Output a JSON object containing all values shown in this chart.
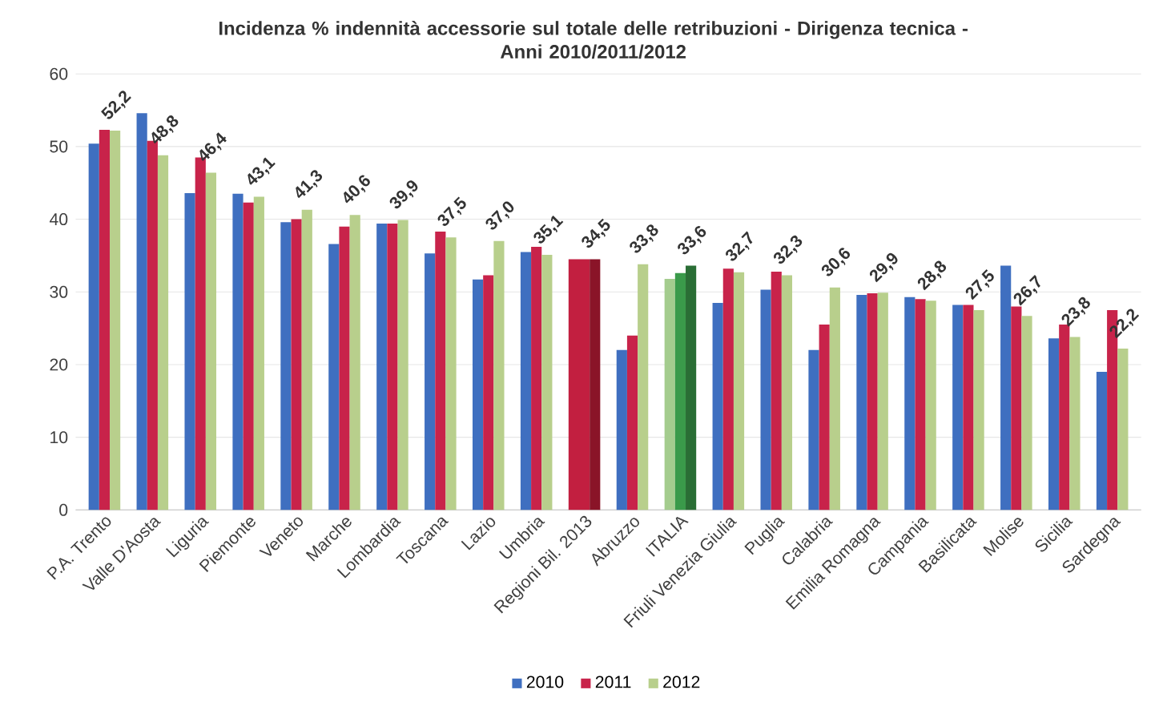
{
  "chart_data": {
    "type": "bar",
    "title": "Incidenza % indennità accessorie sul totale delle retribuzioni - Dirigenza tecnica -\nAnni 2010/2011/2012",
    "categories": [
      "P.A. Trento",
      "Valle D'Aosta",
      "Liguria",
      "Piemonte",
      "Veneto",
      "Marche",
      "Lombardia",
      "Toscana",
      "Lazio",
      "Umbria",
      "Regioni Bil. 2013",
      "Abruzzo",
      "ITALIA",
      "Friuli Venezia Giulia",
      "Puglia",
      "Calabria",
      "Emilia Romagna",
      "Campania",
      "Basilicata",
      "Molise",
      "Sicilia",
      "Sardegna"
    ],
    "series": [
      {
        "name": "2010",
        "color": "#3f6fc0",
        "colors": [
          "#3f6fc0",
          "#3f6fc0",
          "#3f6fc0",
          "#3f6fc0",
          "#3f6fc0",
          "#3f6fc0",
          "#3f6fc0",
          "#3f6fc0",
          "#3f6fc0",
          "#3f6fc0",
          "#c21f40",
          "#3f6fc0",
          "#a4cc8e",
          "#3f6fc0",
          "#3f6fc0",
          "#3f6fc0",
          "#3f6fc0",
          "#3f6fc0",
          "#3f6fc0",
          "#3f6fc0",
          "#3f6fc0",
          "#3f6fc0"
        ],
        "values": [
          50.4,
          54.6,
          43.6,
          43.5,
          39.6,
          36.6,
          39.4,
          35.3,
          31.7,
          35.5,
          34.5,
          22.0,
          31.8,
          28.5,
          30.3,
          22.0,
          29.6,
          29.3,
          28.2,
          33.6,
          23.6,
          19.0
        ]
      },
      {
        "name": "2011",
        "color": "#c8234a",
        "colors": [
          "#c8234a",
          "#c8234a",
          "#c8234a",
          "#c8234a",
          "#c8234a",
          "#c8234a",
          "#c8234a",
          "#c8234a",
          "#c8234a",
          "#c8234a",
          "#c21f40",
          "#c8234a",
          "#3a9a4a",
          "#c8234a",
          "#c8234a",
          "#c8234a",
          "#c8234a",
          "#c8234a",
          "#c8234a",
          "#c8234a",
          "#c8234a",
          "#c8234a"
        ],
        "values": [
          52.3,
          50.8,
          48.5,
          42.3,
          40.0,
          39.0,
          39.4,
          38.3,
          32.3,
          36.2,
          34.5,
          24.0,
          32.6,
          33.2,
          32.8,
          25.5,
          29.8,
          29.0,
          28.2,
          28.0,
          25.5,
          27.5
        ]
      },
      {
        "name": "2012",
        "color": "#b8cf8c",
        "colors": [
          "#b8cf8c",
          "#b8cf8c",
          "#b8cf8c",
          "#b8cf8c",
          "#b8cf8c",
          "#b8cf8c",
          "#b8cf8c",
          "#b8cf8c",
          "#b8cf8c",
          "#b8cf8c",
          "#8a1428",
          "#b8cf8c",
          "#2a6e35",
          "#b8cf8c",
          "#b8cf8c",
          "#b8cf8c",
          "#b8cf8c",
          "#b8cf8c",
          "#b8cf8c",
          "#b8cf8c",
          "#b8cf8c",
          "#b8cf8c"
        ],
        "values": [
          52.2,
          48.8,
          46.4,
          43.1,
          41.3,
          40.6,
          39.9,
          37.5,
          37.0,
          35.1,
          34.5,
          33.8,
          33.6,
          32.7,
          32.3,
          30.6,
          29.9,
          28.8,
          27.5,
          26.7,
          23.8,
          22.2
        ],
        "value_labels": [
          "52,2",
          "48,8",
          "46,4",
          "43,1",
          "41,3",
          "40,6",
          "39,9",
          "37,5",
          "37,0",
          "35,1",
          "34,5",
          "33,8",
          "33,6",
          "32,7",
          "32,3",
          "30,6",
          "29,9",
          "28,8",
          "27,5",
          "26,7",
          "23,8",
          "22,2"
        ]
      }
    ],
    "ylim": [
      0,
      60
    ],
    "yticks": [
      0,
      10,
      20,
      30,
      40,
      50,
      60
    ],
    "grid": "y",
    "legend": "bottom"
  }
}
